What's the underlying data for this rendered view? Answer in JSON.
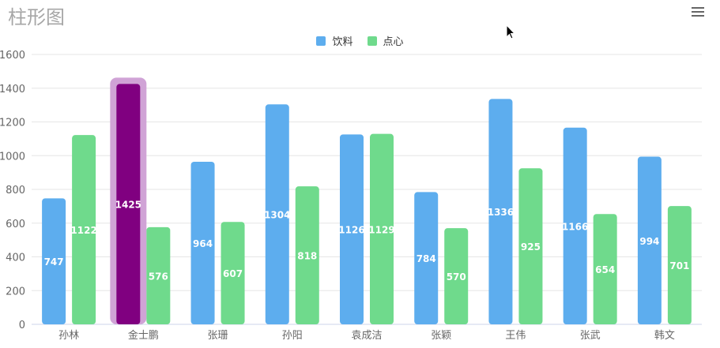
{
  "chart_data": {
    "type": "bar",
    "title": "柱形图",
    "categories": [
      "孙林",
      "金士鹏",
      "张珊",
      "孙阳",
      "袁成洁",
      "张颖",
      "王伟",
      "张武",
      "韩文"
    ],
    "series": [
      {
        "name": "饮料",
        "color": "#5dadee",
        "values": [
          747,
          1425,
          964,
          1304,
          1126,
          784,
          1336,
          1166,
          994
        ]
      },
      {
        "name": "点心",
        "color": "#6fda8c",
        "values": [
          1122,
          576,
          607,
          818,
          1129,
          570,
          925,
          654,
          701
        ]
      }
    ],
    "ylim": [
      0,
      1600
    ],
    "yticks": [
      0,
      200,
      400,
      600,
      800,
      1000,
      1200,
      1400,
      1600
    ],
    "grid": true,
    "legend_position": "top-center",
    "highlight": {
      "series": 0,
      "index": 1,
      "color": "#800080",
      "halo": "#d0a3d6"
    }
  },
  "legend": {
    "item0": "饮料",
    "item1": "点心"
  }
}
